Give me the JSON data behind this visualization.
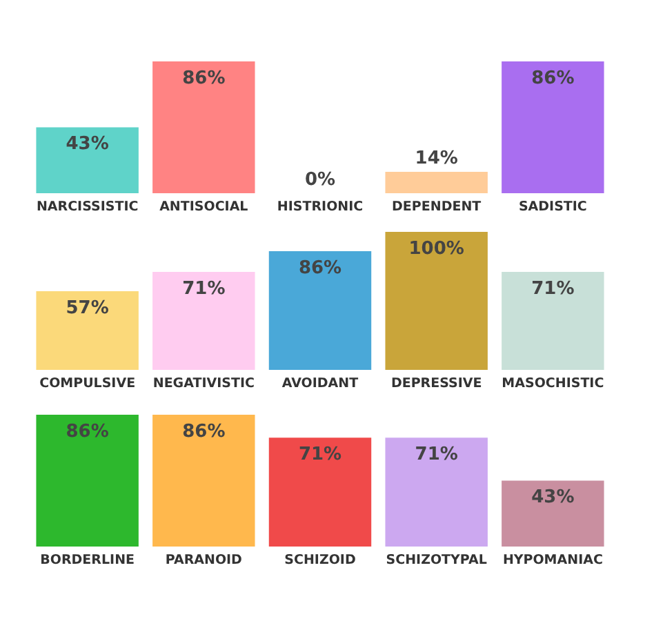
{
  "chart_data": [
    {
      "type": "bar",
      "categories": [
        "NARCISSISTIC",
        "ANTISOCIAL",
        "HISTRIONIC",
        "DEPENDENT",
        "SADISTIC"
      ],
      "values": [
        43,
        86,
        0,
        14,
        86
      ],
      "value_labels": [
        "43%",
        "86%",
        "0%",
        "14%",
        "86%"
      ],
      "colors": [
        "#5fd3c9",
        "#ff8383",
        "#7ed957",
        "#ffcc99",
        "#a96ef0"
      ]
    },
    {
      "type": "bar",
      "categories": [
        "COMPULSIVE",
        "NEGATIVISTIC",
        "AVOIDANT",
        "DEPRESSIVE",
        "MASOCHISTIC"
      ],
      "values": [
        57,
        71,
        86,
        100,
        71
      ],
      "value_labels": [
        "57%",
        "71%",
        "86%",
        "100%",
        "71%"
      ],
      "colors": [
        "#fbd97a",
        "#ffccf0",
        "#4aa8d8",
        "#c9a53a",
        "#c8e0d8"
      ]
    },
    {
      "type": "bar",
      "categories": [
        "BORDERLINE",
        "PARANOID",
        "SCHIZOID",
        "SCHIZOTYPAL",
        "HYPOMANIAC"
      ],
      "values": [
        86,
        86,
        71,
        71,
        43
      ],
      "value_labels": [
        "86%",
        "86%",
        "71%",
        "71%",
        "43%"
      ],
      "colors": [
        "#2db82d",
        "#ffb84d",
        "#f04a4a",
        "#cca8f0",
        "#c98fa0"
      ]
    }
  ]
}
